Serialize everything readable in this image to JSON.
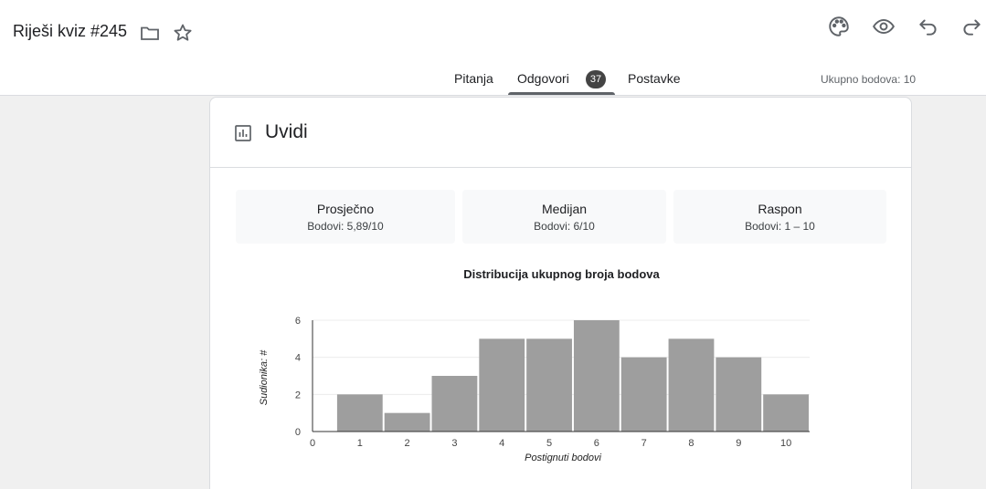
{
  "header": {
    "title": "Riješi kviz #245",
    "icons": [
      "folder-icon",
      "star-icon",
      "palette-icon",
      "eye-icon",
      "undo-icon",
      "redo-icon"
    ]
  },
  "tabs": [
    {
      "label": "Pitanja"
    },
    {
      "label": "Odgovori",
      "badge": "37",
      "active": true
    },
    {
      "label": "Postavke"
    }
  ],
  "total_points": "Ukupno bodova: 10",
  "insights": {
    "title": "Uvidi",
    "stats": [
      {
        "label": "Prosječno",
        "value": "Bodovi: 5,89/10"
      },
      {
        "label": "Medijan",
        "value": "Bodovi: 6/10"
      },
      {
        "label": "Raspon",
        "value": "Bodovi: 1 – 10"
      }
    ]
  },
  "chart_data": {
    "type": "bar",
    "title": "Distribucija ukupnog broja bodova",
    "xlabel": "Postignuti bodovi",
    "ylabel": "Sudionika: #",
    "categories": [
      "1",
      "2",
      "3",
      "4",
      "5",
      "6",
      "7",
      "8",
      "9",
      "10"
    ],
    "values": [
      2,
      1,
      3,
      5,
      5,
      6,
      4,
      5,
      4,
      2
    ],
    "x_ticks": [
      "0",
      "1",
      "2",
      "3",
      "4",
      "5",
      "6",
      "7",
      "8",
      "9",
      "10"
    ],
    "y_ticks": [
      "0",
      "2",
      "4",
      "6"
    ],
    "ylim": [
      0,
      6
    ],
    "bar_color": "#9e9e9e",
    "grid": true
  }
}
